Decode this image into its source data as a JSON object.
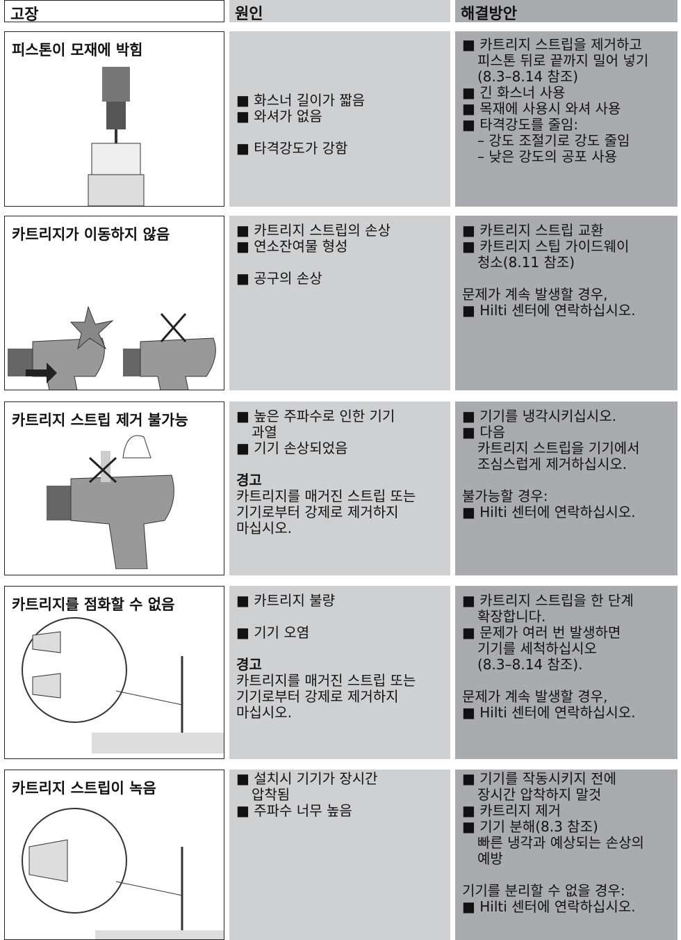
{
  "header": [
    "고장",
    "원인",
    "해결방안"
  ],
  "rows": [
    {
      "fault": "피스톤이 모재에 박힘",
      "cause": [
        [
          [
            "■ 화스너 길이가 짧음"
          ],
          [
            "■ 와셔가 없음"
          ]
        ],
        [
          [
            "■ 타격강도가 강함"
          ]
        ]
      ],
      "solution": [
        [
          [
            "■ 카트리지 스트립을 제거하고",
            "피스톤 뒤로 끝까지 밀어 넣기",
            "(8.3–8.14 참조)"
          ],
          [
            "■ 긴 화스너 사용"
          ],
          [
            "■ 목재에 사용시 와셔 사용"
          ],
          [
            "■ 타격강도를 줄임:",
            "– 강도 조절기로 강도 줄임",
            "– 낮은 강도의 공포 사용"
          ]
        ]
      ]
    },
    {
      "fault": "카트리지가 이동하지 않음",
      "cause": [
        [
          [
            "■ 카트리지 스트립의 손상"
          ],
          [
            "■ 연소잔여물 형성"
          ]
        ],
        [
          [
            "■ 공구의 손상"
          ]
        ]
      ],
      "solution": [
        [
          [
            "■ 카트리지 스트립 교환"
          ],
          [
            "■ 카트리지 스팁 가이드웨이",
            "청소(8.11 참조)"
          ]
        ],
        [
          [
            "문제가 계속 발생할 경우,"
          ],
          [
            "■ Hilti 센터에 연락하십시오."
          ]
        ]
      ]
    },
    {
      "fault": "카트리지 스트립 제거 불가능",
      "cause": [
        [
          [
            "■ 높은 주파수로 인한 기기",
            "과열"
          ],
          [
            "■ 기기 손상되었음"
          ]
        ],
        {
          "title": "경고",
          "lines": [
            "카트리지를 매거진 스트립 또는",
            "기기로부터 강제로 제거하지",
            "마십시오."
          ]
        }
      ],
      "solution": [
        [
          [
            "■ 기기를 냉각시키십시오."
          ],
          [
            "■ 다음",
            "카트리지 스트립을 기기에서",
            "조심스럽게 제거하십시오."
          ]
        ],
        [
          [
            "불가능할 경우:"
          ],
          [
            "■ Hilti 센터에 연락하십시오."
          ]
        ]
      ]
    },
    {
      "fault": "카트리지를 점화할 수 없음",
      "cause": [
        [
          [
            "■ 카트리지 불량"
          ]
        ],
        [
          [
            "■ 기기 오염"
          ]
        ],
        {
          "title": "경고",
          "lines": [
            "카트리지를 매거진 스트립 또는",
            "기기로부터 강제로 제거하지",
            "마십시오."
          ]
        }
      ],
      "solution": [
        [
          [
            "■ 카트리지 스트립을 한 단계",
            "확장합니다."
          ],
          [
            "■ 문제가 여러 번 발생하면",
            "기기를 세척하십시오",
            "(8.3–8.14 참조)."
          ]
        ],
        [
          [
            "문제가 계속 발생할 경우,"
          ],
          [
            "■ Hilti 센터에 연락하십시오."
          ]
        ]
      ]
    },
    {
      "fault": "카트리지 스트립이 녹음",
      "cause": [
        [
          [
            "■ 설치시 기기가 장시간",
            "압착됨"
          ],
          [
            "■ 주파수 너무 높음"
          ]
        ]
      ],
      "solution": [
        [
          [
            "■ 기기를 작동시키지 전에",
            "장시간 압착하지 말것"
          ],
          [
            "■ 카트리지 제거"
          ],
          [
            "■ 기기 분해(8.3 참조)",
            "빠른 냉각과 예상되는 손상의",
            "예방"
          ]
        ],
        [
          [
            "기기를 분리할 수 없을 경우:"
          ],
          [
            "■ Hilti 센터에 연락하십시오."
          ]
        ]
      ]
    }
  ]
}
